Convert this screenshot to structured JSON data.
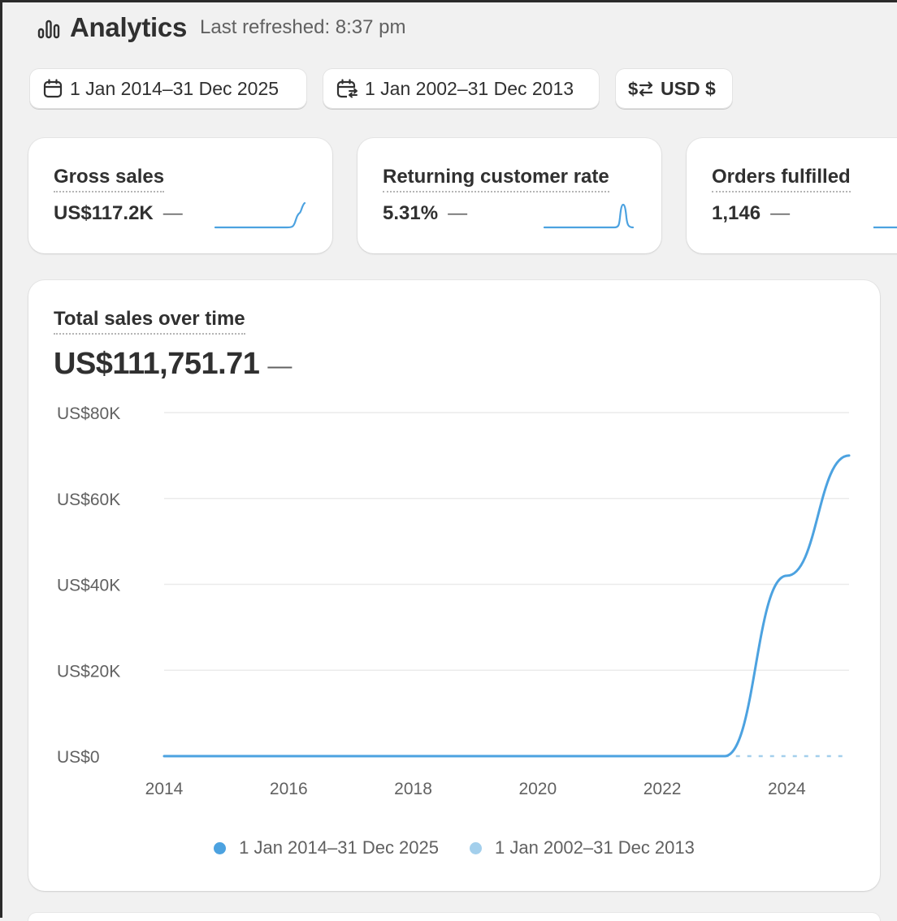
{
  "header": {
    "title": "Analytics",
    "last_refreshed": "Last refreshed: 8:37 pm",
    "icon": "analytics-bars-icon"
  },
  "toolbar": {
    "date_range_label": "1 Jan 2014–31 Dec 2025",
    "compare_range_label": "1 Jan 2002–31 Dec 2013",
    "currency_label": "USD $",
    "icons": [
      "calendar-icon",
      "calendar-compare-icon",
      "currency-swap-icon"
    ]
  },
  "metrics": [
    {
      "label": "Gross sales",
      "value": "US$117.2K",
      "change": "—"
    },
    {
      "label": "Returning customer rate",
      "value": "5.31%",
      "change": "—"
    },
    {
      "label": "Orders fulfilled",
      "value": "1,146",
      "change": "—"
    }
  ],
  "sales_card": {
    "title": "Total sales over time",
    "total": "US$111,751.71",
    "change": "—"
  },
  "colors": {
    "primary_series": "#4ca2e0",
    "comparison_series": "#a3cfec",
    "grid": "#ebebeb"
  },
  "chart_data": {
    "type": "line",
    "y_tick_labels": [
      "US$80K",
      "US$60K",
      "US$40K",
      "US$20K",
      "US$0"
    ],
    "y_ticks": [
      80000,
      60000,
      40000,
      20000,
      0
    ],
    "ylim": [
      0,
      80000
    ],
    "x_tick_labels": [
      "2014",
      "2016",
      "2018",
      "2020",
      "2022",
      "2024"
    ],
    "x_ticks": [
      2014,
      2016,
      2018,
      2020,
      2022,
      2024
    ],
    "xlim": [
      2014,
      2025
    ],
    "grid": true,
    "legend_position": "bottom",
    "series": [
      {
        "name": "1 Jan 2014–31 Dec 2025",
        "style": "solid",
        "x": [
          2014,
          2015,
          2016,
          2017,
          2018,
          2019,
          2020,
          2021,
          2022,
          2023,
          2024,
          2025
        ],
        "values": [
          0,
          0,
          0,
          0,
          0,
          0,
          0,
          0,
          0,
          0,
          42000,
          70000
        ]
      },
      {
        "name": "1 Jan 2002–31 Dec 2013",
        "style": "dashed",
        "x": [
          2014,
          2015,
          2016,
          2017,
          2018,
          2019,
          2020,
          2021,
          2022,
          2023,
          2024,
          2025
        ],
        "values": [
          0,
          0,
          0,
          0,
          0,
          0,
          0,
          0,
          0,
          0,
          0,
          0
        ]
      }
    ]
  }
}
